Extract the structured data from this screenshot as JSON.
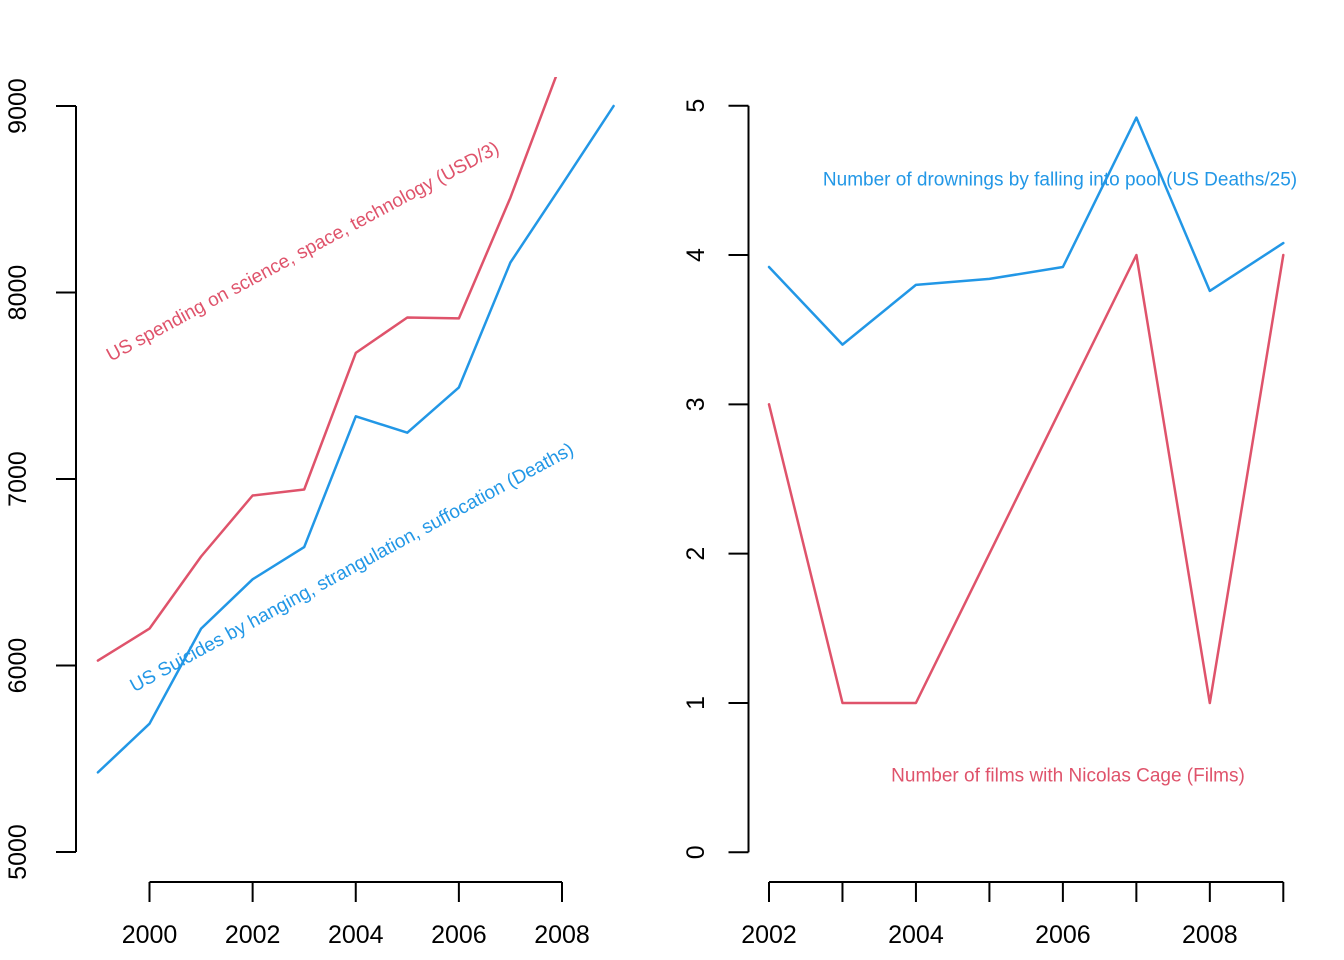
{
  "colors": {
    "red": "#DF536B",
    "blue": "#2297E6",
    "axis": "#000000",
    "tick_label": "#000000"
  },
  "chart_data": [
    {
      "id": "science-spending-vs-suicides",
      "type": "line",
      "title": "",
      "xlabel": "",
      "ylabel": "",
      "grid": false,
      "legend_position": "labels-along-lines",
      "x_range_shown": [
        1999,
        2009
      ],
      "y_range_shown": [
        5000,
        9000
      ],
      "x_ticks": [
        {
          "v": 2000,
          "label": "2000"
        },
        {
          "v": 2002,
          "label": "2002"
        },
        {
          "v": 2004,
          "label": "2004"
        },
        {
          "v": 2006,
          "label": "2006"
        },
        {
          "v": 2008,
          "label": "2008"
        }
      ],
      "y_ticks": [
        {
          "v": 5000,
          "label": "5000"
        },
        {
          "v": 6000,
          "label": "6000"
        },
        {
          "v": 7000,
          "label": "7000"
        },
        {
          "v": 8000,
          "label": "8000"
        },
        {
          "v": 9000,
          "label": "9000"
        }
      ],
      "series": [
        {
          "name": "US spending on science, space, technology (USD/3)",
          "color": "#DF536B",
          "x": [
            1999,
            2000,
            2001,
            2002,
            2003,
            2004,
            2005,
            2006,
            2007,
            2008
          ],
          "values": [
            6026.3,
            6198,
            6584.3,
            6911.3,
            6943.7,
            7676.3,
            7865.7,
            7861.3,
            8508.3,
            9243.7
          ]
        },
        {
          "name": "US Suicides by hanging, strangulation, suffocation (Deaths)",
          "color": "#2297E6",
          "x": [
            1999,
            2000,
            2001,
            2002,
            2003,
            2004,
            2005,
            2006,
            2007,
            2008,
            2009
          ],
          "values": [
            5427,
            5688,
            6198,
            6462,
            6635,
            7336,
            7248,
            7491,
            8161,
            8578,
            9000
          ]
        }
      ]
    },
    {
      "id": "cage-films-vs-drownings",
      "type": "line",
      "title": "",
      "xlabel": "",
      "ylabel": "",
      "grid": false,
      "legend_position": "labels-in-plot",
      "x_range_shown": [
        2002,
        2009
      ],
      "y_range_shown": [
        0,
        5
      ],
      "x_ticks": [
        {
          "v": 2002,
          "label": "2002"
        },
        {
          "v": 2003,
          "label": ""
        },
        {
          "v": 2004,
          "label": "2004"
        },
        {
          "v": 2005,
          "label": ""
        },
        {
          "v": 2006,
          "label": "2006"
        },
        {
          "v": 2007,
          "label": ""
        },
        {
          "v": 2008,
          "label": "2008"
        },
        {
          "v": 2009,
          "label": ""
        }
      ],
      "y_ticks": [
        {
          "v": 0,
          "label": "0"
        },
        {
          "v": 1,
          "label": "1"
        },
        {
          "v": 2,
          "label": "2"
        },
        {
          "v": 3,
          "label": "3"
        },
        {
          "v": 4,
          "label": "4"
        },
        {
          "v": 5,
          "label": "5"
        }
      ],
      "series": [
        {
          "name": "Number of drownings by falling into pool (US Deaths/25)",
          "color": "#2297E6",
          "x": [
            2002,
            2003,
            2004,
            2005,
            2006,
            2007,
            2008,
            2009
          ],
          "values": [
            3.92,
            3.4,
            3.8,
            3.84,
            3.92,
            4.92,
            3.76,
            4.08
          ]
        },
        {
          "name": "Number of films with Nicolas Cage (Films)",
          "color": "#DF536B",
          "x": [
            2002,
            2003,
            2004,
            2005,
            2006,
            2007,
            2008,
            2009
          ],
          "values": [
            3,
            1,
            1,
            2,
            3,
            4,
            1,
            4
          ]
        }
      ]
    }
  ]
}
